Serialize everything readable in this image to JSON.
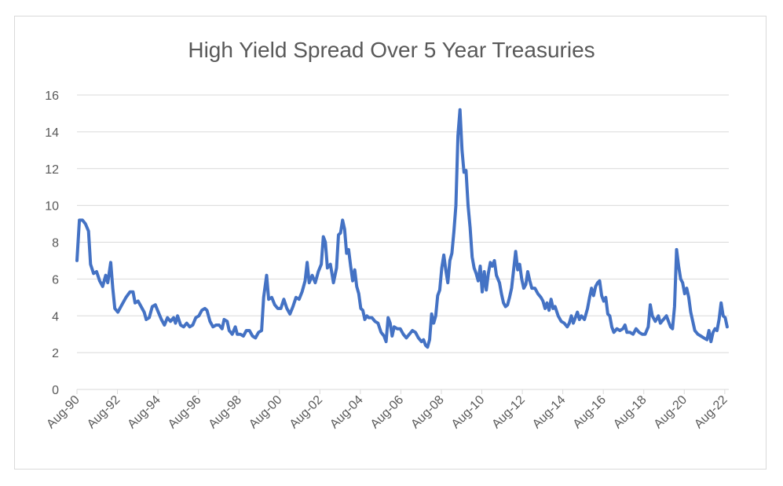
{
  "chart_data": {
    "type": "line",
    "title": "High Yield Spread Over 5 Year Treasuries",
    "xlabel": "",
    "ylabel": "",
    "ylim": [
      0,
      16
    ],
    "yticks": [
      0,
      2,
      4,
      6,
      8,
      10,
      12,
      14,
      16
    ],
    "xtick_labels": [
      "Aug-90",
      "Aug-92",
      "Aug-94",
      "Aug-96",
      "Aug-98",
      "Aug-00",
      "Aug-02",
      "Aug-04",
      "Aug-06",
      "Aug-08",
      "Aug-10",
      "Aug-12",
      "Aug-14",
      "Aug-16",
      "Aug-18",
      "Aug-20",
      "Aug-22"
    ],
    "grid": "horizontal",
    "line_color": "#4472c4",
    "series": [
      {
        "x_start_year": 1990.58,
        "points": [
          [
            1990.58,
            7.0
          ],
          [
            1990.7,
            9.2
          ],
          [
            1990.85,
            9.2
          ],
          [
            1991.0,
            9.0
          ],
          [
            1991.15,
            8.6
          ],
          [
            1991.25,
            6.8
          ],
          [
            1991.4,
            6.3
          ],
          [
            1991.55,
            6.4
          ],
          [
            1991.7,
            5.9
          ],
          [
            1991.85,
            5.6
          ],
          [
            1992.0,
            6.2
          ],
          [
            1992.1,
            5.8
          ],
          [
            1992.25,
            6.9
          ],
          [
            1992.35,
            5.5
          ],
          [
            1992.45,
            4.4
          ],
          [
            1992.6,
            4.2
          ],
          [
            1992.8,
            4.6
          ],
          [
            1993.0,
            5.0
          ],
          [
            1993.2,
            5.3
          ],
          [
            1993.35,
            5.3
          ],
          [
            1993.45,
            4.7
          ],
          [
            1993.6,
            4.8
          ],
          [
            1993.75,
            4.5
          ],
          [
            1993.9,
            4.2
          ],
          [
            1994.0,
            3.8
          ],
          [
            1994.15,
            3.9
          ],
          [
            1994.3,
            4.5
          ],
          [
            1994.45,
            4.6
          ],
          [
            1994.6,
            4.2
          ],
          [
            1994.75,
            3.8
          ],
          [
            1994.9,
            3.5
          ],
          [
            1995.05,
            3.9
          ],
          [
            1995.2,
            3.7
          ],
          [
            1995.35,
            3.9
          ],
          [
            1995.45,
            3.6
          ],
          [
            1995.55,
            4.0
          ],
          [
            1995.7,
            3.5
          ],
          [
            1995.85,
            3.4
          ],
          [
            1996.0,
            3.6
          ],
          [
            1996.15,
            3.4
          ],
          [
            1996.3,
            3.5
          ],
          [
            1996.45,
            3.9
          ],
          [
            1996.6,
            4.0
          ],
          [
            1996.75,
            4.3
          ],
          [
            1996.9,
            4.4
          ],
          [
            1997.0,
            4.3
          ],
          [
            1997.15,
            3.7
          ],
          [
            1997.3,
            3.4
          ],
          [
            1997.45,
            3.5
          ],
          [
            1997.6,
            3.5
          ],
          [
            1997.75,
            3.3
          ],
          [
            1997.85,
            3.8
          ],
          [
            1998.0,
            3.7
          ],
          [
            1998.1,
            3.2
          ],
          [
            1998.25,
            3.0
          ],
          [
            1998.4,
            3.4
          ],
          [
            1998.5,
            3.0
          ],
          [
            1998.65,
            3.0
          ],
          [
            1998.8,
            2.9
          ],
          [
            1998.95,
            3.2
          ],
          [
            1999.1,
            3.2
          ],
          [
            1999.25,
            2.9
          ],
          [
            1999.4,
            2.8
          ],
          [
            1999.55,
            3.1
          ],
          [
            1999.7,
            3.2
          ],
          [
            1999.8,
            5.0
          ],
          [
            1999.95,
            6.2
          ],
          [
            2000.05,
            4.9
          ],
          [
            2000.2,
            5.0
          ],
          [
            2000.35,
            4.6
          ],
          [
            2000.5,
            4.4
          ],
          [
            2000.65,
            4.4
          ],
          [
            2000.8,
            4.9
          ],
          [
            2000.95,
            4.4
          ],
          [
            2001.1,
            4.1
          ],
          [
            2001.25,
            4.5
          ],
          [
            2001.4,
            5.0
          ],
          [
            2001.55,
            4.9
          ],
          [
            2001.7,
            5.3
          ],
          [
            2001.85,
            5.9
          ],
          [
            2001.95,
            6.9
          ],
          [
            2002.05,
            5.8
          ],
          [
            2002.2,
            6.2
          ],
          [
            2002.35,
            5.8
          ],
          [
            2002.5,
            6.4
          ],
          [
            2002.65,
            6.8
          ],
          [
            2002.75,
            8.3
          ],
          [
            2002.85,
            8.0
          ],
          [
            2002.95,
            6.6
          ],
          [
            2003.1,
            6.8
          ],
          [
            2003.25,
            5.8
          ],
          [
            2003.4,
            6.6
          ],
          [
            2003.5,
            8.4
          ],
          [
            2003.6,
            8.5
          ],
          [
            2003.7,
            9.2
          ],
          [
            2003.8,
            8.7
          ],
          [
            2003.9,
            7.4
          ],
          [
            2004.0,
            7.6
          ],
          [
            2004.1,
            6.7
          ],
          [
            2004.2,
            5.9
          ],
          [
            2004.3,
            6.5
          ],
          [
            2004.4,
            5.6
          ],
          [
            2004.5,
            5.2
          ],
          [
            2004.6,
            4.4
          ],
          [
            2004.7,
            4.3
          ],
          [
            2004.8,
            3.8
          ],
          [
            2004.9,
            4.0
          ],
          [
            2005.0,
            3.9
          ],
          [
            2005.15,
            3.9
          ],
          [
            2005.3,
            3.7
          ],
          [
            2005.45,
            3.6
          ],
          [
            2005.6,
            3.1
          ],
          [
            2005.75,
            2.9
          ],
          [
            2005.85,
            2.6
          ],
          [
            2005.95,
            3.9
          ],
          [
            2006.05,
            3.6
          ],
          [
            2006.15,
            2.9
          ],
          [
            2006.25,
            3.4
          ],
          [
            2006.4,
            3.3
          ],
          [
            2006.55,
            3.3
          ],
          [
            2006.7,
            3.0
          ],
          [
            2006.85,
            2.8
          ],
          [
            2007.0,
            3.0
          ],
          [
            2007.15,
            3.2
          ],
          [
            2007.3,
            3.1
          ],
          [
            2007.45,
            2.8
          ],
          [
            2007.6,
            2.6
          ],
          [
            2007.7,
            2.7
          ],
          [
            2007.8,
            2.4
          ],
          [
            2007.9,
            2.3
          ],
          [
            2008.0,
            2.7
          ],
          [
            2008.1,
            4.1
          ],
          [
            2008.2,
            3.6
          ],
          [
            2008.3,
            4.0
          ],
          [
            2008.4,
            5.1
          ],
          [
            2008.5,
            5.4
          ],
          [
            2008.6,
            6.6
          ],
          [
            2008.7,
            7.3
          ],
          [
            2008.8,
            6.5
          ],
          [
            2008.9,
            5.8
          ],
          [
            2009.0,
            7.0
          ],
          [
            2009.1,
            7.4
          ],
          [
            2009.2,
            8.6
          ],
          [
            2009.3,
            10.0
          ],
          [
            2009.4,
            13.8
          ],
          [
            2009.5,
            15.2
          ],
          [
            2009.6,
            13.0
          ],
          [
            2009.7,
            11.8
          ],
          [
            2009.8,
            11.9
          ],
          [
            2009.9,
            10.0
          ],
          [
            2010.0,
            8.8
          ],
          [
            2010.1,
            7.2
          ],
          [
            2010.2,
            6.6
          ],
          [
            2010.3,
            6.3
          ],
          [
            2010.4,
            5.9
          ],
          [
            2010.5,
            6.7
          ],
          [
            2010.6,
            5.3
          ],
          [
            2010.7,
            6.4
          ],
          [
            2010.8,
            5.4
          ],
          [
            2010.9,
            6.3
          ],
          [
            2011.0,
            6.9
          ],
          [
            2011.1,
            6.7
          ],
          [
            2011.2,
            7.0
          ],
          [
            2011.3,
            6.2
          ],
          [
            2011.45,
            5.8
          ],
          [
            2011.55,
            5.2
          ],
          [
            2011.65,
            4.7
          ],
          [
            2011.75,
            4.5
          ],
          [
            2011.85,
            4.6
          ],
          [
            2011.95,
            5.0
          ],
          [
            2012.05,
            5.5
          ],
          [
            2012.15,
            6.5
          ],
          [
            2012.25,
            7.5
          ],
          [
            2012.35,
            6.5
          ],
          [
            2012.45,
            6.8
          ],
          [
            2012.55,
            6.0
          ],
          [
            2012.65,
            5.5
          ],
          [
            2012.75,
            5.7
          ],
          [
            2012.85,
            6.4
          ],
          [
            2012.95,
            5.9
          ],
          [
            2013.05,
            5.5
          ],
          [
            2013.2,
            5.5
          ],
          [
            2013.35,
            5.2
          ],
          [
            2013.5,
            5.0
          ],
          [
            2013.6,
            4.8
          ],
          [
            2013.7,
            4.4
          ],
          [
            2013.8,
            4.7
          ],
          [
            2013.9,
            4.3
          ],
          [
            2014.0,
            4.9
          ],
          [
            2014.1,
            4.4
          ],
          [
            2014.2,
            4.5
          ],
          [
            2014.35,
            4.0
          ],
          [
            2014.5,
            3.7
          ],
          [
            2014.65,
            3.6
          ],
          [
            2014.8,
            3.4
          ],
          [
            2014.9,
            3.6
          ],
          [
            2015.0,
            4.0
          ],
          [
            2015.1,
            3.6
          ],
          [
            2015.2,
            3.9
          ],
          [
            2015.3,
            4.2
          ],
          [
            2015.4,
            3.8
          ],
          [
            2015.5,
            4.0
          ],
          [
            2015.65,
            3.8
          ],
          [
            2015.8,
            4.4
          ],
          [
            2015.9,
            5.0
          ],
          [
            2016.0,
            5.5
          ],
          [
            2016.1,
            5.1
          ],
          [
            2016.2,
            5.6
          ],
          [
            2016.3,
            5.8
          ],
          [
            2016.4,
            5.9
          ],
          [
            2016.5,
            5.1
          ],
          [
            2016.6,
            4.8
          ],
          [
            2016.7,
            5.0
          ],
          [
            2016.8,
            4.1
          ],
          [
            2016.9,
            4.0
          ],
          [
            2017.0,
            3.4
          ],
          [
            2017.1,
            3.1
          ],
          [
            2017.25,
            3.3
          ],
          [
            2017.4,
            3.2
          ],
          [
            2017.55,
            3.3
          ],
          [
            2017.65,
            3.5
          ],
          [
            2017.75,
            3.1
          ],
          [
            2017.9,
            3.1
          ],
          [
            2018.05,
            3.0
          ],
          [
            2018.2,
            3.3
          ],
          [
            2018.35,
            3.1
          ],
          [
            2018.5,
            3.0
          ],
          [
            2018.65,
            3.0
          ],
          [
            2018.8,
            3.4
          ],
          [
            2018.9,
            4.6
          ],
          [
            2019.0,
            4.0
          ],
          [
            2019.15,
            3.7
          ],
          [
            2019.3,
            4.0
          ],
          [
            2019.4,
            3.6
          ],
          [
            2019.55,
            3.8
          ],
          [
            2019.7,
            4.0
          ],
          [
            2019.8,
            3.7
          ],
          [
            2019.9,
            3.4
          ],
          [
            2020.0,
            3.3
          ],
          [
            2020.1,
            4.5
          ],
          [
            2020.2,
            7.6
          ],
          [
            2020.3,
            6.7
          ],
          [
            2020.4,
            6.0
          ],
          [
            2020.5,
            5.8
          ],
          [
            2020.6,
            5.2
          ],
          [
            2020.7,
            5.5
          ],
          [
            2020.8,
            5.0
          ],
          [
            2020.9,
            4.2
          ],
          [
            2021.0,
            3.7
          ],
          [
            2021.1,
            3.2
          ],
          [
            2021.25,
            3.0
          ],
          [
            2021.4,
            2.9
          ],
          [
            2021.55,
            2.8
          ],
          [
            2021.7,
            2.7
          ],
          [
            2021.8,
            3.2
          ],
          [
            2021.9,
            2.6
          ],
          [
            2022.0,
            3.1
          ],
          [
            2022.1,
            3.3
          ],
          [
            2022.2,
            3.2
          ],
          [
            2022.3,
            3.8
          ],
          [
            2022.4,
            4.7
          ],
          [
            2022.5,
            4.0
          ],
          [
            2022.6,
            3.9
          ],
          [
            2022.7,
            3.4
          ]
        ]
      }
    ]
  }
}
